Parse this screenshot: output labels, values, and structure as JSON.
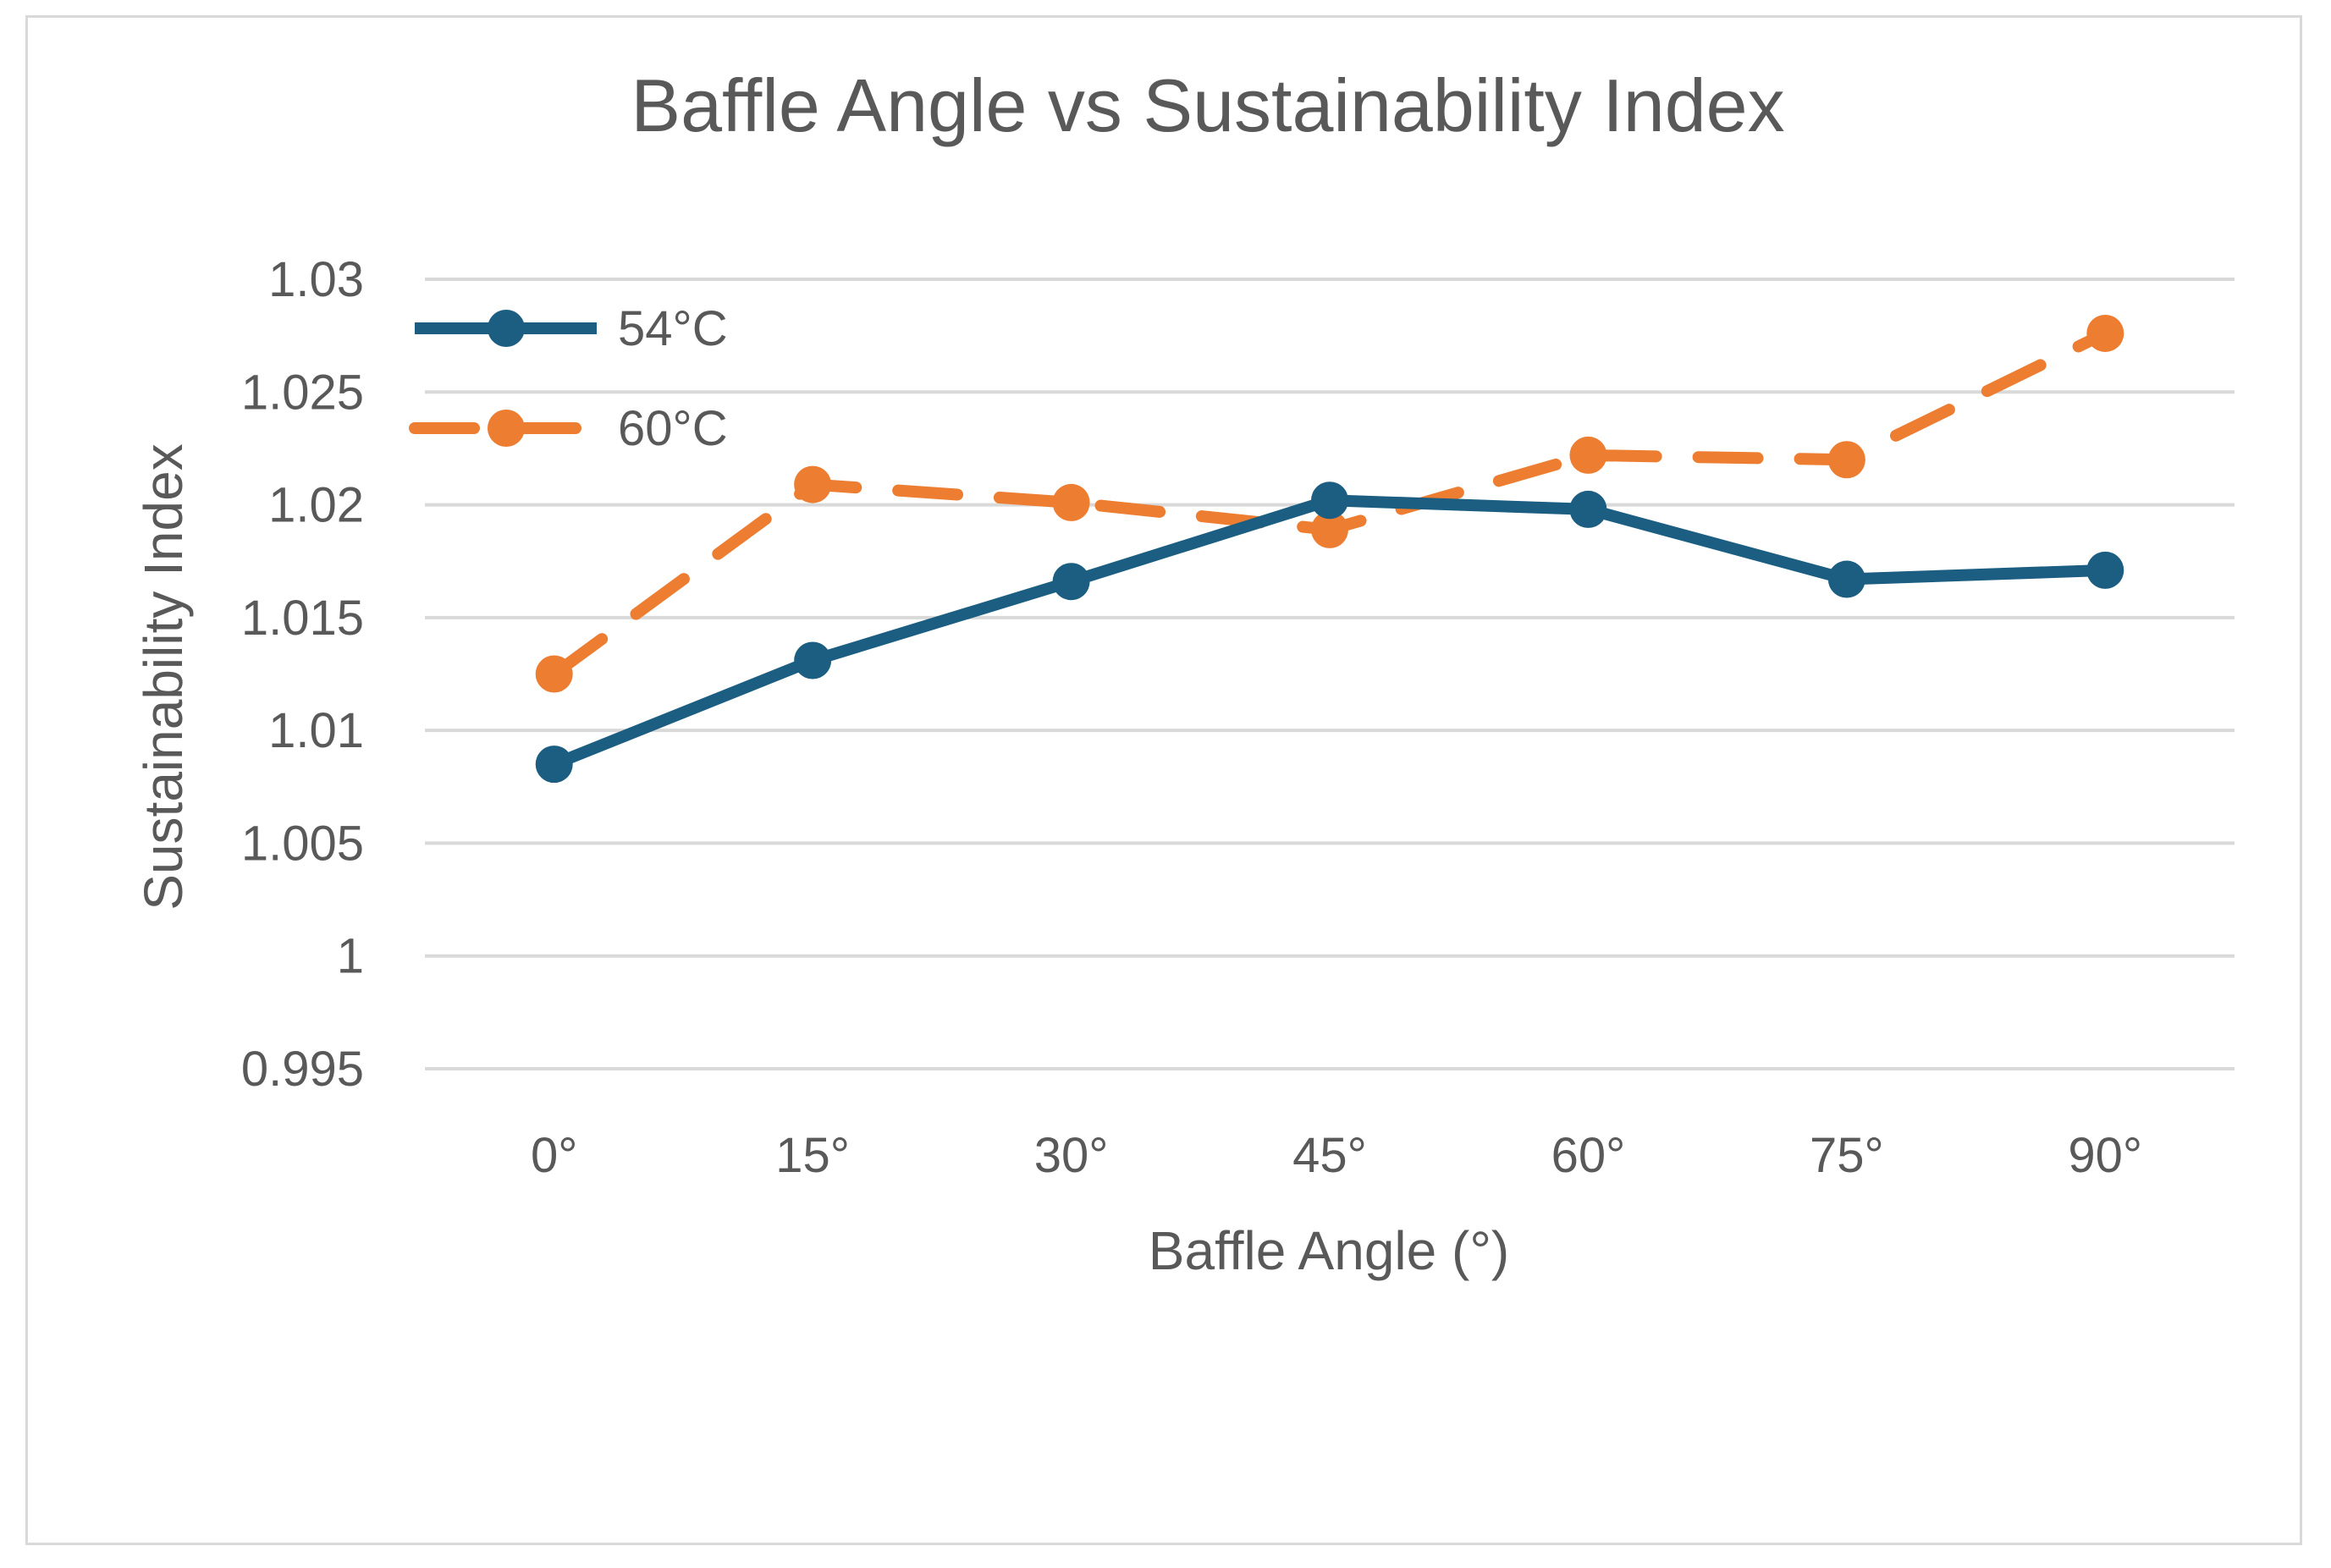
{
  "chart_data": {
    "type": "line",
    "title": "Baffle Angle vs Sustainability Index",
    "xlabel": "Baffle Angle (°)",
    "ylabel": "Sustainability Index",
    "categories": [
      "0°",
      "15°",
      "30°",
      "45°",
      "60°",
      "75°",
      "90°"
    ],
    "ylim": [
      0.995,
      1.03
    ],
    "yticks": [
      "0.995",
      "1",
      "1.005",
      "1.01",
      "1.015",
      "1.02",
      "1.025",
      "1.03"
    ],
    "grid": true,
    "legend_position": "top-left",
    "series": [
      {
        "name": "54°C",
        "color": "#1b5e82",
        "dash": "solid",
        "values": [
          1.0085,
          1.0131,
          1.0166,
          1.0202,
          1.0198,
          1.0167,
          1.0171
        ]
      },
      {
        "name": "60°C",
        "color": "#ed7d31",
        "dash": "dashed",
        "values": [
          1.0125,
          1.0209,
          1.0201,
          1.0189,
          1.0222,
          1.022,
          1.0276
        ]
      }
    ]
  }
}
